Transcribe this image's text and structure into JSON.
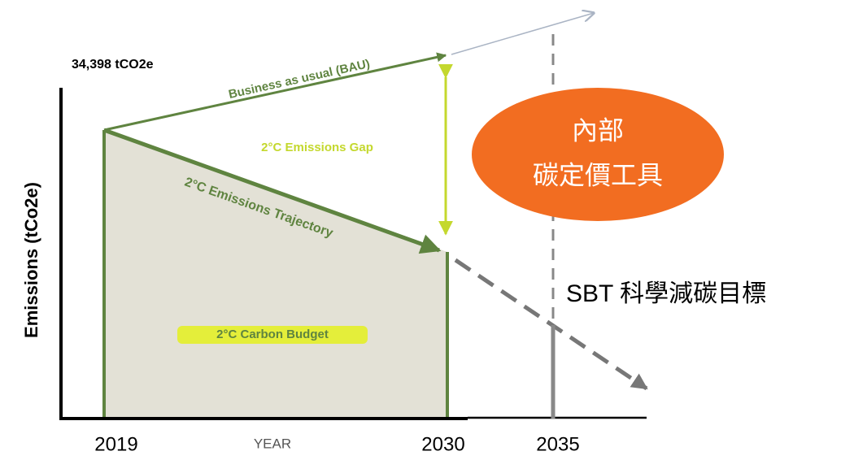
{
  "header": {
    "value_label": "34,398 tCO2e",
    "y_axis_label": "Emissions (tCo2e)",
    "x_axis_label": "YEAR"
  },
  "x_labels": [
    "2019",
    "2030",
    "2035"
  ],
  "lines": {
    "bau": "Business as usual (BAU)",
    "gap": "2°C Emissions Gap",
    "trajectory": "2°C Emissions Trajectory",
    "budget": "2°C Carbon Budget"
  },
  "callout": {
    "lines": [
      "內部",
      "碳定價工具"
    ]
  },
  "target": "SBT 科學減碳目標"
}
